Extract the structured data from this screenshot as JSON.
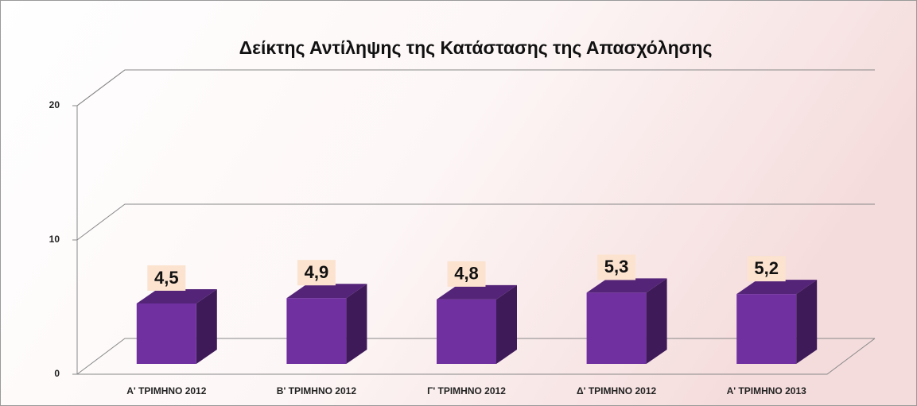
{
  "chart_data": {
    "type": "bar3d",
    "title": "Δείκτης Αντίληψης της Κατάστασης της Απασχόλησης",
    "categories": [
      "Α' ΤΡΙΜΗΝΟ 2012",
      "Β' ΤΡΙΜΗΝΟ 2012",
      "Γ' ΤΡΙΜΗΝΟ 2012",
      "Δ' ΤΡΙΜΗΝΟ 2012",
      "Α' ΤΡΙΜΗΝΟ 2013"
    ],
    "values": [
      4.5,
      4.9,
      4.8,
      5.3,
      5.2
    ],
    "value_labels": [
      "4,5",
      "4,9",
      "4,8",
      "5,3",
      "5,2"
    ],
    "color": "#7030a0",
    "ylim": [
      0,
      20
    ],
    "yticks": [
      0,
      10,
      20
    ],
    "grid": true
  }
}
